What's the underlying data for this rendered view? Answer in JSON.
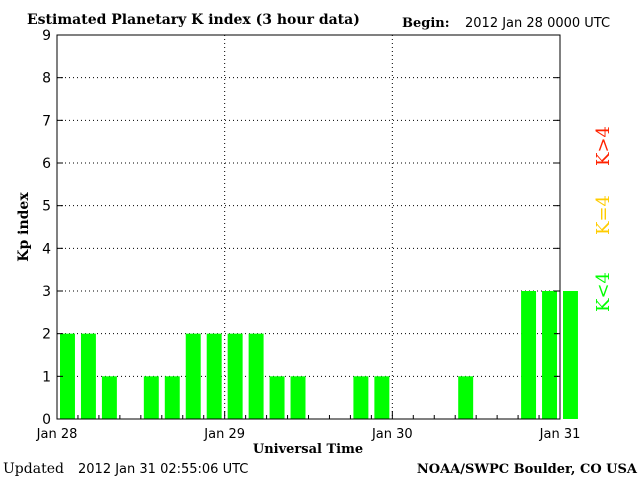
{
  "header": {
    "title": "Estimated Planetary K index (3 hour data)",
    "begin_label": "Begin:",
    "begin_value": "2012 Jan 28 0000 UTC"
  },
  "footer": {
    "updated_label": "Updated",
    "updated_value": "2012 Jan 31 02:55:06 UTC",
    "source": "NOAA/SWPC Boulder, CO USA"
  },
  "legend": {
    "high": "K>4",
    "equal": "K=4",
    "low": "K<4"
  },
  "colors": {
    "low": "#00ff00",
    "equal": "#ffcc00",
    "high": "#ff2200",
    "axis": "#000000",
    "background": "#ffffff"
  },
  "chart_data": {
    "type": "bar",
    "title": "Estimated Planetary K index (3 hour data)",
    "xlabel": "Universal Time",
    "ylabel": "Kp index",
    "ylim": [
      0,
      9
    ],
    "yticks": [
      0,
      1,
      2,
      3,
      4,
      5,
      6,
      7,
      8,
      9
    ],
    "x_tick_labels": [
      "Jan 28",
      "Jan 29",
      "Jan 30",
      "Jan 31"
    ],
    "interval_hours": 3,
    "grid": "dotted",
    "values": [
      2,
      2,
      1,
      null,
      1,
      1,
      2,
      2,
      2,
      2,
      1,
      1,
      null,
      null,
      1,
      1,
      null,
      null,
      null,
      1,
      null,
      null,
      3,
      3,
      3
    ]
  }
}
